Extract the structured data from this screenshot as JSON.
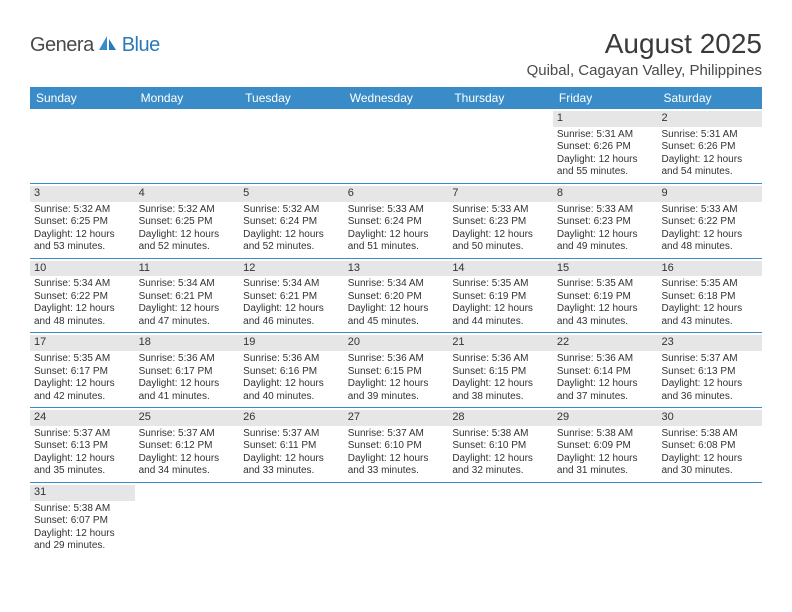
{
  "logo": {
    "text1": "Genera",
    "text2": "Blue"
  },
  "title": "August 2025",
  "location": "Quibal, Cagayan Valley, Philippines",
  "colors": {
    "header_bg": "#3a8cc9",
    "header_text": "#ffffff",
    "daynum_bg": "#e6e6e6",
    "text": "#333333",
    "logo_gray": "#4a4a4a",
    "logo_blue": "#2a7ab8",
    "divider": "#3a8cc9"
  },
  "dayNames": [
    "Sunday",
    "Monday",
    "Tuesday",
    "Wednesday",
    "Thursday",
    "Friday",
    "Saturday"
  ],
  "weeks": [
    [
      null,
      null,
      null,
      null,
      null,
      {
        "n": "1",
        "sr": "5:31 AM",
        "ss": "6:26 PM",
        "dl": "12 hours and 55 minutes."
      },
      {
        "n": "2",
        "sr": "5:31 AM",
        "ss": "6:26 PM",
        "dl": "12 hours and 54 minutes."
      }
    ],
    [
      {
        "n": "3",
        "sr": "5:32 AM",
        "ss": "6:25 PM",
        "dl": "12 hours and 53 minutes."
      },
      {
        "n": "4",
        "sr": "5:32 AM",
        "ss": "6:25 PM",
        "dl": "12 hours and 52 minutes."
      },
      {
        "n": "5",
        "sr": "5:32 AM",
        "ss": "6:24 PM",
        "dl": "12 hours and 52 minutes."
      },
      {
        "n": "6",
        "sr": "5:33 AM",
        "ss": "6:24 PM",
        "dl": "12 hours and 51 minutes."
      },
      {
        "n": "7",
        "sr": "5:33 AM",
        "ss": "6:23 PM",
        "dl": "12 hours and 50 minutes."
      },
      {
        "n": "8",
        "sr": "5:33 AM",
        "ss": "6:23 PM",
        "dl": "12 hours and 49 minutes."
      },
      {
        "n": "9",
        "sr": "5:33 AM",
        "ss": "6:22 PM",
        "dl": "12 hours and 48 minutes."
      }
    ],
    [
      {
        "n": "10",
        "sr": "5:34 AM",
        "ss": "6:22 PM",
        "dl": "12 hours and 48 minutes."
      },
      {
        "n": "11",
        "sr": "5:34 AM",
        "ss": "6:21 PM",
        "dl": "12 hours and 47 minutes."
      },
      {
        "n": "12",
        "sr": "5:34 AM",
        "ss": "6:21 PM",
        "dl": "12 hours and 46 minutes."
      },
      {
        "n": "13",
        "sr": "5:34 AM",
        "ss": "6:20 PM",
        "dl": "12 hours and 45 minutes."
      },
      {
        "n": "14",
        "sr": "5:35 AM",
        "ss": "6:19 PM",
        "dl": "12 hours and 44 minutes."
      },
      {
        "n": "15",
        "sr": "5:35 AM",
        "ss": "6:19 PM",
        "dl": "12 hours and 43 minutes."
      },
      {
        "n": "16",
        "sr": "5:35 AM",
        "ss": "6:18 PM",
        "dl": "12 hours and 43 minutes."
      }
    ],
    [
      {
        "n": "17",
        "sr": "5:35 AM",
        "ss": "6:17 PM",
        "dl": "12 hours and 42 minutes."
      },
      {
        "n": "18",
        "sr": "5:36 AM",
        "ss": "6:17 PM",
        "dl": "12 hours and 41 minutes."
      },
      {
        "n": "19",
        "sr": "5:36 AM",
        "ss": "6:16 PM",
        "dl": "12 hours and 40 minutes."
      },
      {
        "n": "20",
        "sr": "5:36 AM",
        "ss": "6:15 PM",
        "dl": "12 hours and 39 minutes."
      },
      {
        "n": "21",
        "sr": "5:36 AM",
        "ss": "6:15 PM",
        "dl": "12 hours and 38 minutes."
      },
      {
        "n": "22",
        "sr": "5:36 AM",
        "ss": "6:14 PM",
        "dl": "12 hours and 37 minutes."
      },
      {
        "n": "23",
        "sr": "5:37 AM",
        "ss": "6:13 PM",
        "dl": "12 hours and 36 minutes."
      }
    ],
    [
      {
        "n": "24",
        "sr": "5:37 AM",
        "ss": "6:13 PM",
        "dl": "12 hours and 35 minutes."
      },
      {
        "n": "25",
        "sr": "5:37 AM",
        "ss": "6:12 PM",
        "dl": "12 hours and 34 minutes."
      },
      {
        "n": "26",
        "sr": "5:37 AM",
        "ss": "6:11 PM",
        "dl": "12 hours and 33 minutes."
      },
      {
        "n": "27",
        "sr": "5:37 AM",
        "ss": "6:10 PM",
        "dl": "12 hours and 33 minutes."
      },
      {
        "n": "28",
        "sr": "5:38 AM",
        "ss": "6:10 PM",
        "dl": "12 hours and 32 minutes."
      },
      {
        "n": "29",
        "sr": "5:38 AM",
        "ss": "6:09 PM",
        "dl": "12 hours and 31 minutes."
      },
      {
        "n": "30",
        "sr": "5:38 AM",
        "ss": "6:08 PM",
        "dl": "12 hours and 30 minutes."
      }
    ],
    [
      {
        "n": "31",
        "sr": "5:38 AM",
        "ss": "6:07 PM",
        "dl": "12 hours and 29 minutes."
      },
      null,
      null,
      null,
      null,
      null,
      null
    ]
  ],
  "labels": {
    "sunrise": "Sunrise:",
    "sunset": "Sunset:",
    "daylight": "Daylight:"
  }
}
